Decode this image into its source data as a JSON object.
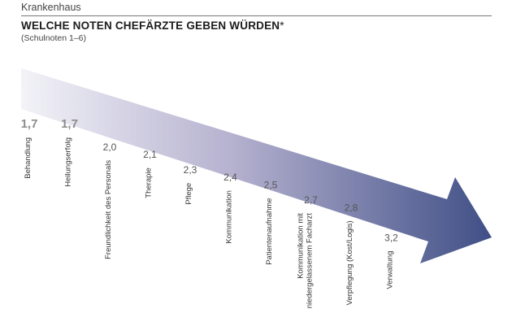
{
  "header": {
    "kicker": "Krankenhaus",
    "title": "WELCHE NOTEN CHEFÄRZTE GEBEN WÜRDEN",
    "title_mark": "*",
    "subtitle": "(Schulnoten 1–6)"
  },
  "colors": {
    "arrow_start": "#f3f3f8",
    "arrow_mid": "#b5b1cf",
    "arrow_end": "#3f4f86",
    "highlight_value": "#8c8c8c",
    "value": "#555555",
    "label": "#333333"
  },
  "chart_data": {
    "type": "bar",
    "title": "WELCHE NOTEN CHEFÄRZTE GEBEN WÜRDEN*",
    "subtitle": "(Schulnoten 1–6)",
    "xlabel": "",
    "ylabel": "",
    "categories": [
      "Behandlung",
      "Heilungserfolg",
      "Freundlichkeit des Personals",
      "Therapie",
      "Pflege",
      "Kommunikation",
      "Patientenaufnahme",
      "Kommunikation mit niedergelassenem Facharzt",
      "Verpflegung (Kost/Logis)",
      "Verwaltung"
    ],
    "values": [
      1.7,
      1.7,
      2.0,
      2.1,
      2.3,
      2.4,
      2.5,
      2.7,
      2.8,
      3.2
    ],
    "value_labels": [
      "1,7",
      "1,7",
      "2,0",
      "2,1",
      "2,3",
      "2,4",
      "2,5",
      "2,7",
      "2,8",
      "3,2"
    ],
    "label_lines": [
      [
        "Behandlung"
      ],
      [
        "Heilungserfolg"
      ],
      [
        "Freundlichkeit des Personals"
      ],
      [
        "Therapie"
      ],
      [
        "Pflege"
      ],
      [
        "Kommunikation"
      ],
      [
        "Patientenaufnahme"
      ],
      [
        "Kommunikation mit",
        "niedergelassenem Facharzt"
      ],
      [
        "Verpflegung (Kost/Logis)"
      ],
      [
        "Verwaltung"
      ]
    ],
    "highlighted": [
      true,
      true,
      false,
      false,
      false,
      false,
      false,
      false,
      false,
      false
    ],
    "grid": false,
    "legend": "none"
  }
}
